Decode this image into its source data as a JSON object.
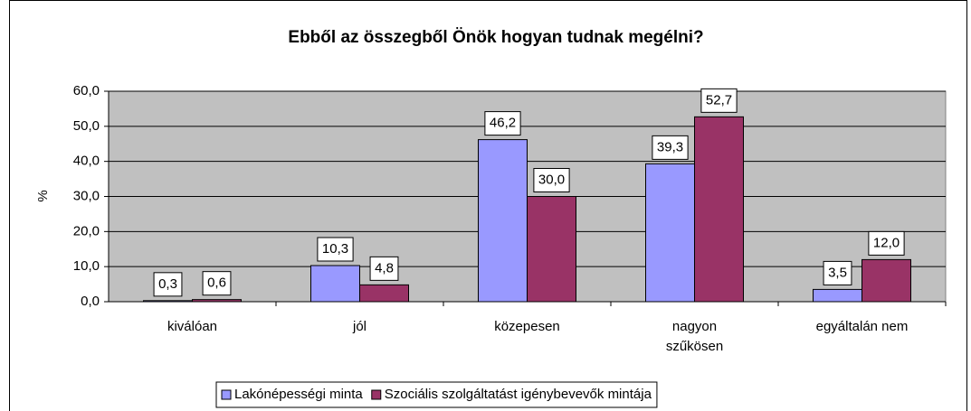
{
  "chart_data": {
    "type": "bar",
    "title": "Ebből az összegből Önök hogyan tudnak megélni?",
    "y_label": "%",
    "categories": [
      "kiválóan",
      "jól",
      "közepesen",
      "nagyon\nszűkösen",
      "egyáltalán nem"
    ],
    "series": [
      {
        "name": "Lakónépességi minta",
        "color": "#9999ff",
        "values": [
          0.3,
          10.3,
          46.2,
          39.3,
          3.5
        ],
        "value_labels": [
          "0,3",
          "10,3",
          "46,2",
          "39,3",
          "3,5"
        ]
      },
      {
        "name": "Szociális szolgáltatást igénybevevők mintája",
        "color": "#993366",
        "values": [
          0.6,
          4.8,
          30.0,
          52.7,
          12.0
        ],
        "value_labels": [
          "0,6",
          "4,8",
          "30,0",
          "52,7",
          "12,0"
        ]
      }
    ],
    "ylim": [
      0,
      60
    ],
    "yticks": [
      {
        "value": 0,
        "label": "0,0"
      },
      {
        "value": 10,
        "label": "10,0"
      },
      {
        "value": 20,
        "label": "20,0"
      },
      {
        "value": 30,
        "label": "30,0"
      },
      {
        "value": 40,
        "label": "40,0"
      },
      {
        "value": 50,
        "label": "50,0"
      },
      {
        "value": 60,
        "label": "60,0"
      }
    ],
    "grid": true,
    "plot_background": "#c0c0c0",
    "legend": "bottom"
  }
}
